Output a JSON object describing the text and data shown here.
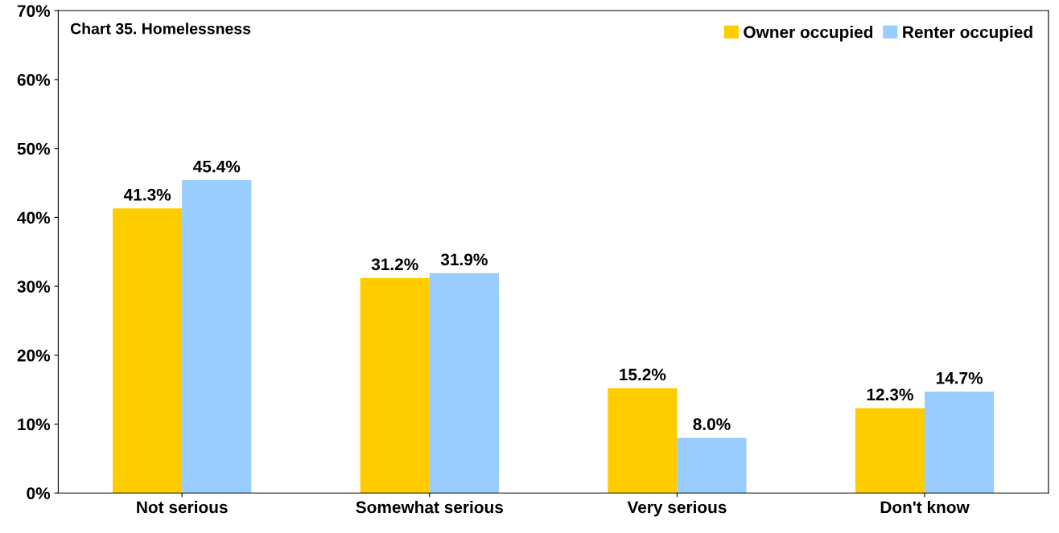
{
  "chart_data": {
    "type": "bar",
    "title": "Chart 35. Homelessness",
    "categories": [
      "Not serious",
      "Somewhat serious",
      "Very serious",
      "Don't know"
    ],
    "series": [
      {
        "name": "Owner occupied",
        "color": "#ffcc00",
        "values": [
          41.3,
          31.2,
          15.2,
          12.3
        ],
        "value_labels": [
          "41.3%",
          "31.2%",
          "15.2%",
          "12.3%"
        ]
      },
      {
        "name": "Renter occupied",
        "color": "#99ccff",
        "values": [
          45.4,
          31.9,
          8.0,
          14.7
        ],
        "value_labels": [
          "45.4%",
          "31.9%",
          "8.0%",
          "14.7%"
        ]
      }
    ],
    "ylim": [
      0,
      70
    ],
    "yticks": [
      {
        "value": 0,
        "label": "0%"
      },
      {
        "value": 10,
        "label": "10%"
      },
      {
        "value": 20,
        "label": "20%"
      },
      {
        "value": 30,
        "label": "30%"
      },
      {
        "value": 40,
        "label": "40%"
      },
      {
        "value": 50,
        "label": "50%"
      },
      {
        "value": 60,
        "label": "60%"
      },
      {
        "value": 70,
        "label": "70%"
      }
    ],
    "grid": false,
    "legend": "top right"
  }
}
